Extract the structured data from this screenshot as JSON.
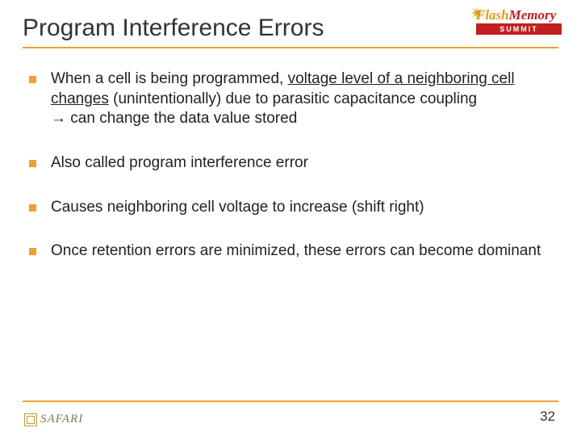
{
  "title": "Program Interference Errors",
  "logo": {
    "flash": "Flash",
    "memory": "Memory",
    "summit": "SUMMIT"
  },
  "bullets": [
    {
      "pre": "When a cell is being programmed, ",
      "underlined": "voltage level of a neighboring cell changes",
      "post": " (unintentionally) due to parasitic capacitance coupling",
      "arrow_line": "→ can change the data value stored"
    },
    {
      "text": "Also called program interference error"
    },
    {
      "text": "Causes neighboring cell voltage to increase (shift right)"
    },
    {
      "text": "Once retention errors are minimized, these errors can become dominant"
    }
  ],
  "footer": {
    "safari": "SAFARI",
    "page": "32"
  },
  "colors": {
    "accent": "#f0a030",
    "text": "#222222",
    "logo_gold": "#d4a017",
    "logo_red": "#c02020"
  }
}
